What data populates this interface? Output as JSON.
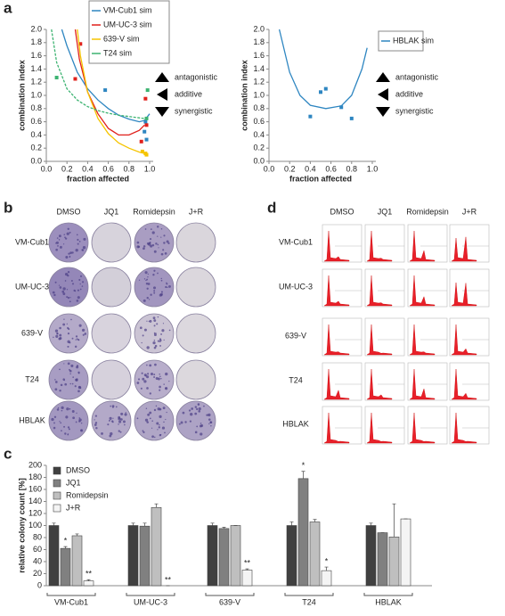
{
  "panel_labels": [
    "a",
    "b",
    "c",
    "d"
  ],
  "chart_data": [
    {
      "type": "scatter",
      "xlabel": "fraction affected",
      "ylabel": "combination index",
      "legend": "top",
      "xlim": [
        0,
        1
      ],
      "ylim": [
        0,
        2
      ],
      "xticks": [
        {
          "value": 0,
          "label": "0.0"
        },
        0.2,
        0.4,
        0.6,
        0.8,
        {
          "value": 1,
          "label": "1.0"
        }
      ],
      "yticks": [
        {
          "value": 0,
          "label": "0.0"
        },
        0.2,
        0.4,
        0.6,
        0.8,
        {
          "value": 1,
          "label": "1.0"
        },
        1.2,
        1.4,
        1.6,
        1.8,
        {
          "value": 2,
          "label": "2.0"
        }
      ],
      "annotations": [
        "antagonistic",
        "additive",
        "synergistic"
      ],
      "series": [
        {
          "name": "VM-Cub1 sim",
          "color": "#2e86c1",
          "x": [
            0.57,
            0.95,
            0.97,
            0.96
          ],
          "values": [
            1.08,
            0.45,
            0.33,
            0.6
          ],
          "curve": {
            "x": [
              0.15,
              0.2,
              0.3,
              0.4,
              0.5,
              0.6,
              0.7,
              0.8,
              0.9,
              0.95,
              1.0
            ],
            "values": [
              2.0,
              1.75,
              1.35,
              1.1,
              0.93,
              0.8,
              0.7,
              0.64,
              0.6,
              0.62,
              0.72
            ]
          }
        },
        {
          "name": "UM-UC-3 sim",
          "color": "#e0201b",
          "x": [
            0.33,
            0.28,
            0.92,
            0.96,
            0.97
          ],
          "values": [
            1.78,
            1.25,
            0.3,
            0.95,
            0.55
          ],
          "curve": {
            "x": [
              0.28,
              0.32,
              0.4,
              0.5,
              0.6,
              0.7,
              0.8,
              0.9,
              0.95
            ],
            "values": [
              2.0,
              1.55,
              1.05,
              0.72,
              0.5,
              0.4,
              0.4,
              0.47,
              0.55
            ]
          }
        },
        {
          "name": "639-V sim",
          "color": "#f5c400",
          "x": [
            0.93,
            0.96,
            0.97
          ],
          "values": [
            0.15,
            0.12,
            0.1
          ],
          "curve": {
            "x": [
              0.3,
              0.33,
              0.4,
              0.5,
              0.6,
              0.7,
              0.8,
              0.9,
              0.95
            ],
            "values": [
              2.0,
              1.6,
              1.05,
              0.65,
              0.42,
              0.28,
              0.2,
              0.14,
              0.12
            ]
          }
        },
        {
          "name": "T24 sim",
          "color": "#3cb371",
          "x": [
            0.1,
            0.98,
            0.97
          ],
          "values": [
            1.27,
            1.08,
            0.65
          ],
          "curve": {
            "x": [
              0.05,
              0.1,
              0.2,
              0.3,
              0.4,
              0.5,
              0.6,
              0.7,
              0.8,
              0.9,
              0.95
            ],
            "values": [
              2.0,
              1.5,
              1.1,
              0.93,
              0.83,
              0.77,
              0.73,
              0.7,
              0.68,
              0.66,
              0.65
            ]
          }
        }
      ]
    },
    {
      "type": "scatter",
      "xlabel": "fraction affected",
      "ylabel": "combination index",
      "legend": "right",
      "xlim": [
        0,
        1
      ],
      "ylim": [
        0,
        2
      ],
      "xticks": [
        {
          "value": 0,
          "label": "0.0"
        },
        0.2,
        0.4,
        0.6,
        0.8,
        {
          "value": 1,
          "label": "1.0"
        }
      ],
      "yticks": [
        {
          "value": 0,
          "label": "0.0"
        },
        0.2,
        0.4,
        0.6,
        0.8,
        {
          "value": 1,
          "label": "1.0"
        },
        1.2,
        1.4,
        1.6,
        1.8,
        {
          "value": 2,
          "label": "2.0"
        }
      ],
      "annotations": [
        "antagonistic",
        "additive",
        "synergistic"
      ],
      "series": [
        {
          "name": "HBLAK sim",
          "color": "#2e86c1",
          "x": [
            0.4,
            0.5,
            0.55,
            0.7,
            0.8
          ],
          "values": [
            0.68,
            1.05,
            1.1,
            0.82,
            0.65
          ],
          "curve": {
            "x": [
              0.1,
              0.2,
              0.3,
              0.4,
              0.55,
              0.7,
              0.8,
              0.9,
              0.95
            ],
            "values": [
              2.0,
              1.35,
              1.0,
              0.85,
              0.8,
              0.84,
              1.0,
              1.4,
              1.72
            ]
          }
        }
      ]
    },
    {
      "type": "bar",
      "ylabel": "relative colony count [%]",
      "legend": "top-left",
      "categories": [
        "VM-Cub1",
        "UM-UC-3",
        "639-V",
        "T24",
        "HBLAK"
      ],
      "ylim": [
        0,
        200
      ],
      "yticks": [
        0,
        20,
        40,
        60,
        80,
        100,
        120,
        140,
        160,
        180,
        200
      ],
      "series": [
        {
          "name": "DMSO",
          "color": "#404040",
          "values": [
            100,
            100,
            100,
            100,
            100
          ],
          "errors": [
            4,
            4,
            4,
            6,
            4
          ],
          "significance": [
            null,
            null,
            null,
            null,
            null
          ]
        },
        {
          "name": "JQ1",
          "color": "#808080",
          "values": [
            62,
            99,
            95,
            178,
            88
          ],
          "errors": [
            3,
            5,
            2,
            12,
            0
          ],
          "significance": [
            "*",
            null,
            null,
            "*",
            null
          ]
        },
        {
          "name": "Romidepsin",
          "color": "#bfbfbf",
          "values": [
            83,
            130,
            100,
            106,
            81
          ],
          "errors": [
            3,
            6,
            0,
            4,
            55
          ],
          "significance": [
            null,
            null,
            null,
            null,
            null
          ]
        },
        {
          "name": "J+R",
          "color": "#f4f4f4",
          "values": [
            8,
            0,
            26,
            25,
            111
          ],
          "errors": [
            2,
            0,
            2,
            6,
            0
          ],
          "significance": [
            "**",
            "**",
            "**",
            "*",
            null
          ]
        }
      ]
    }
  ],
  "plates": {
    "columns": [
      "DMSO",
      "JQ1",
      "Romidepsin",
      "J+R"
    ],
    "rows": [
      "VM-Cub1",
      "UM-UC-3",
      "639-V",
      "T24",
      "HBLAK"
    ]
  },
  "cytometry": {
    "columns": [
      "DMSO",
      "JQ1",
      "Romidepsin",
      "J+R"
    ],
    "rows": [
      "VM-Cub1",
      "UM-UC-3",
      "639-V",
      "T24",
      "HBLAK"
    ]
  }
}
